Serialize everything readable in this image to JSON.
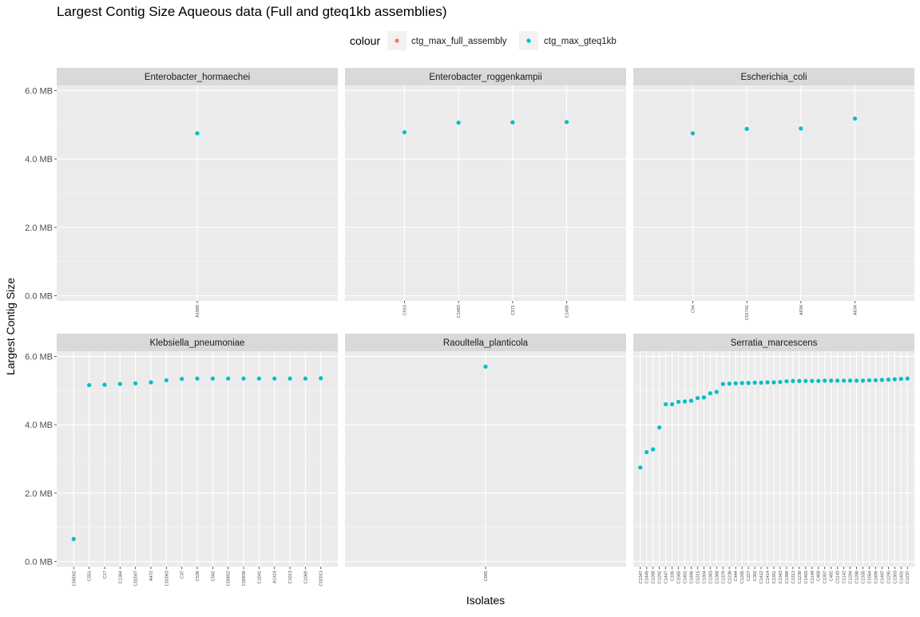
{
  "title": "Largest Contig Size Aqueous data (Full and gteq1kb assemblies)",
  "colors": {
    "full": "#F8766D",
    "gteq1kb": "#00BFC4",
    "panel_bg": "#EBEBEB",
    "strip_bg": "#D9D9D9"
  },
  "chart_data": {
    "type": "scatter",
    "title": "Largest Contig Size Aqueous data (Full and gteq1kb assemblies)",
    "xlabel": "Isolates",
    "ylabel": "Largest Contig Size",
    "y_unit": "MB",
    "ylim": [
      -0.15,
      6.15
    ],
    "y_ticks": [
      0,
      2,
      4,
      6
    ],
    "y_tick_labels": [
      "0.0 MB",
      "2.0 MB",
      "4.0 MB",
      "6.0 MB"
    ],
    "legend": {
      "title": "colour",
      "position": "top",
      "entries": [
        "ctg_max_full_assembly",
        "ctg_max_gteq1kb"
      ]
    },
    "facets": [
      {
        "name": "Enterobacter_hormaechei",
        "categories": [
          "A1089"
        ],
        "series": [
          {
            "name": "ctg_max_gteq1kb",
            "values": [
              4.75
            ]
          }
        ]
      },
      {
        "name": "Enterobacter_roggenkampii",
        "categories": [
          "C910",
          "C1483",
          "C571",
          "C1480"
        ],
        "series": [
          {
            "name": "ctg_max_gteq1kb",
            "values": [
              4.78,
              5.06,
              5.07,
              5.08
            ]
          }
        ]
      },
      {
        "name": "Escherichia_coli",
        "categories": [
          "C94",
          "C01741",
          "A934",
          "A634"
        ],
        "series": [
          {
            "name": "ctg_max_gteq1kb",
            "values": [
              4.75,
              4.88,
              4.89,
              5.18
            ]
          }
        ]
      },
      {
        "name": "Klebsiella_pneumoniae",
        "categories": [
          "C00002",
          "C551",
          "C17",
          "C1364",
          "C02047",
          "A472",
          "C02063",
          "C37",
          "C536",
          "C582",
          "C00852",
          "C00939",
          "C1041",
          "A1416",
          "C1013",
          "C1069",
          "C02013"
        ],
        "series": [
          {
            "name": "ctg_max_gteq1kb",
            "values": [
              0.66,
              5.16,
              5.17,
              5.19,
              5.21,
              5.24,
              5.3,
              5.34,
              5.35,
              5.35,
              5.35,
              5.35,
              5.35,
              5.35,
              5.35,
              5.35,
              5.36
            ]
          }
        ]
      },
      {
        "name": "Raoultella_planticola",
        "categories": [
          "C665"
        ],
        "series": [
          {
            "name": "ctg_max_gteq1kb",
            "values": [
              5.7
            ]
          }
        ]
      },
      {
        "name": "Serratia_marcescens",
        "categories": [
          "C1347",
          "C1448",
          "C1268",
          "C1292",
          "C1447",
          "C105",
          "C1565",
          "C1481",
          "C1486",
          "C1315",
          "C1304",
          "C1383",
          "C1368",
          "C1379",
          "C1238",
          "C444",
          "C1285",
          "C227",
          "C392",
          "C1412",
          "C1414",
          "C1351",
          "C1343",
          "C1380",
          "C1313",
          "C1239",
          "C1403",
          "C1148",
          "C468",
          "C1307",
          "C492",
          "C1140",
          "C1142",
          "C1284",
          "C1288",
          "C1335",
          "C1564",
          "C1489",
          "C1487",
          "C1295",
          "C1303",
          "C1401",
          "C1237"
        ],
        "series": [
          {
            "name": "ctg_max_gteq1kb",
            "values": [
              2.75,
              3.2,
              3.28,
              3.92,
              4.6,
              4.6,
              4.67,
              4.68,
              4.7,
              4.78,
              4.8,
              4.92,
              4.96,
              5.19,
              5.2,
              5.21,
              5.22,
              5.22,
              5.23,
              5.23,
              5.24,
              5.24,
              5.25,
              5.27,
              5.28,
              5.28,
              5.28,
              5.28,
              5.28,
              5.29,
              5.29,
              5.29,
              5.29,
              5.29,
              5.29,
              5.29,
              5.3,
              5.3,
              5.31,
              5.32,
              5.33,
              5.34,
              5.35
            ]
          }
        ]
      }
    ]
  }
}
